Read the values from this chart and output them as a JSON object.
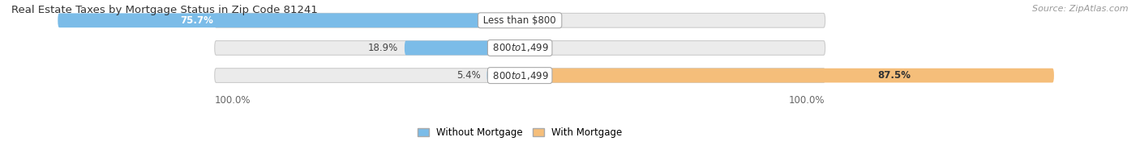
{
  "title": "Real Estate Taxes by Mortgage Status in Zip Code 81241",
  "source": "Source: ZipAtlas.com",
  "rows": [
    {
      "label": "Less than $800",
      "without_mortgage": 75.7,
      "with_mortgage": 0.0,
      "wo_pct_inside": true,
      "wi_pct_inside": false
    },
    {
      "label": "$800 to $1,499",
      "without_mortgage": 18.9,
      "with_mortgage": 0.0,
      "wo_pct_inside": false,
      "wi_pct_inside": false
    },
    {
      "label": "$800 to $1,499",
      "without_mortgage": 5.4,
      "with_mortgage": 87.5,
      "wo_pct_inside": false,
      "wi_pct_inside": true
    }
  ],
  "without_mortgage_color": "#7BBCE8",
  "with_mortgage_color": "#F5BE7A",
  "bar_bg_color": "#EBEBEB",
  "axis_label_left": "100.0%",
  "axis_label_right": "100.0%",
  "legend_without": "Without Mortgage",
  "legend_with": "With Mortgage",
  "title_fontsize": 9.5,
  "source_fontsize": 8,
  "label_fontsize": 8.5,
  "pct_fontsize": 8.5,
  "figsize": [
    14.06,
    1.96
  ],
  "dpi": 100
}
